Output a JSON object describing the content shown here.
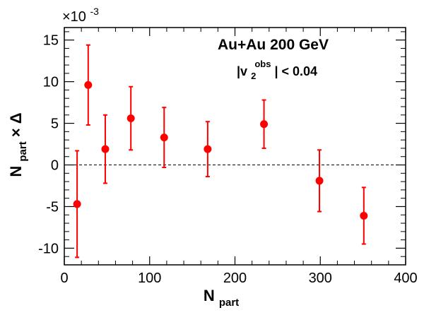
{
  "chart_data": {
    "type": "scatter",
    "x_axis_title": {
      "main": "N",
      "sub": "part"
    },
    "y_axis_title": {
      "main": "N",
      "sub": "part",
      "suffix": " × Δ"
    },
    "y_multiplier": {
      "base": "×10",
      "exponent": "-3"
    },
    "annotations": {
      "system": "Au+Au 200 GeV",
      "cut": {
        "prefix": "|v",
        "sub": "2",
        "sup": "obs",
        "suffix": "| < 0.04"
      }
    },
    "xlim": [
      0,
      400
    ],
    "ylim": [
      -12,
      16.5
    ],
    "x_ticks": [
      0,
      100,
      200,
      300,
      400
    ],
    "y_ticks": [
      -10,
      -5,
      0,
      5,
      10,
      15
    ],
    "x_tick_labels": [
      "0",
      "100",
      "200",
      "300",
      "400"
    ],
    "y_tick_labels": [
      "-10",
      "-5",
      "0",
      "5",
      "10",
      "15"
    ],
    "reference_line": 0,
    "marker_color": "#ff0000",
    "series": [
      {
        "x": [
          15,
          28,
          48,
          78,
          117,
          168,
          234,
          299,
          351
        ],
        "y": [
          -4.7,
          9.6,
          1.9,
          5.6,
          3.3,
          1.9,
          4.9,
          -1.9,
          -6.1
        ],
        "err": [
          6.4,
          4.8,
          4.1,
          3.8,
          3.6,
          3.3,
          2.9,
          3.7,
          3.4
        ]
      }
    ]
  }
}
